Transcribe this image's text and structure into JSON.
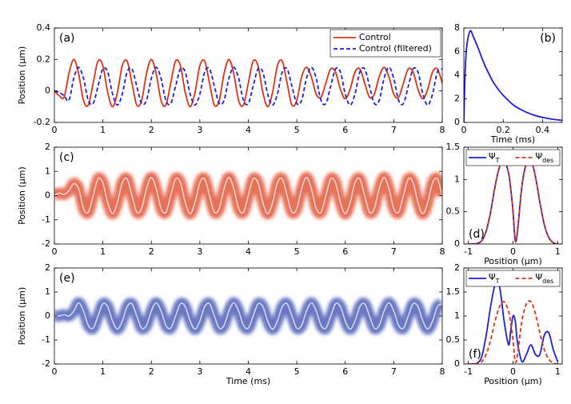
{
  "chart_data": [
    {
      "type": "line",
      "annotation": "(a)",
      "annotation_position": "upper left",
      "ylabel": "Position (μm)",
      "x": [
        0,
        0.1,
        0.2,
        0.3,
        0.4,
        0.5,
        0.6,
        0.7,
        0.8,
        0.9,
        1,
        1.1,
        1.2,
        1.3,
        1.4,
        1.5,
        1.6,
        1.7,
        1.8,
        1.9,
        2,
        2.1,
        2.2,
        2.3,
        2.4,
        2.5,
        2.6,
        2.7,
        2.8,
        2.9,
        3,
        3.1,
        3.2,
        3.3,
        3.4,
        3.5,
        3.6,
        3.7,
        3.8,
        3.9,
        4,
        4.1,
        4.2,
        4.3,
        4.4,
        4.5,
        4.6,
        4.7,
        4.8,
        4.9,
        5,
        5.1,
        5.2,
        5.3,
        5.4,
        5.5,
        5.6,
        5.7,
        5.8,
        5.9,
        6,
        6.1,
        6.2,
        6.3,
        6.4,
        6.5,
        6.6,
        6.7,
        6.8,
        6.9,
        7,
        7.1,
        7.2,
        7.3,
        7.4,
        7.5,
        7.6,
        7.7,
        7.8,
        7.9,
        8
      ],
      "series": [
        {
          "name": "Control",
          "color": "#dd3311",
          "values": [
            0,
            -0.03,
            -0.04,
            0.11,
            0.2,
            0.11,
            -0.06,
            -0.09,
            0.05,
            0.19,
            0.16,
            -0.01,
            -0.1,
            -0.01,
            0.16,
            0.19,
            0.05,
            -0.09,
            -0.06,
            0.11,
            0.2,
            0.11,
            -0.06,
            -0.09,
            0.05,
            0.19,
            0.16,
            -0.01,
            -0.1,
            -0.01,
            0.16,
            0.19,
            0.05,
            -0.09,
            -0.06,
            0.11,
            0.2,
            0.11,
            -0.06,
            -0.09,
            0.05,
            0.19,
            0.16,
            -0.01,
            -0.1,
            -0.01,
            0.16,
            0.19,
            0.05,
            -0.09,
            -0.06,
            0.09,
            0.15,
            0.09,
            -0.02,
            -0.04,
            0.05,
            0.14,
            0.12,
            0.01,
            -0.05,
            0.01,
            0.12,
            0.14,
            0.05,
            -0.04,
            -0.02,
            0.09,
            0.15,
            0.09,
            -0.02,
            -0.04,
            0.05,
            0.14,
            0.12,
            0.01,
            -0.05,
            0.01,
            0.12,
            0.14,
            0.05
          ]
        },
        {
          "name": "Control (filtered)",
          "color": "#1f1fd6",
          "dashed": true,
          "values": [
            0,
            -0.01,
            -0.03,
            -0.06,
            0.08,
            0.15,
            0.08,
            -0.06,
            -0.08,
            0.03,
            0.14,
            0.12,
            -0.02,
            -0.09,
            -0.02,
            0.12,
            0.14,
            0.03,
            -0.08,
            -0.06,
            0.08,
            0.15,
            0.08,
            -0.06,
            -0.08,
            0.03,
            0.14,
            0.12,
            -0.02,
            -0.09,
            -0.02,
            0.12,
            0.14,
            0.03,
            -0.08,
            -0.06,
            0.08,
            0.15,
            0.08,
            -0.06,
            -0.08,
            0.03,
            0.14,
            0.12,
            -0.02,
            -0.09,
            -0.02,
            0.12,
            0.14,
            0.03,
            -0.08,
            -0.06,
            0.08,
            0.15,
            0.08,
            -0.06,
            -0.08,
            0.03,
            0.14,
            0.12,
            -0.02,
            -0.09,
            -0.02,
            0.12,
            0.14,
            0.03,
            -0.08,
            -0.06,
            0.08,
            0.15,
            0.08,
            -0.06,
            -0.08,
            0.03,
            0.14,
            0.12,
            -0.02,
            -0.09,
            -0.02,
            0.12,
            0.14
          ]
        }
      ],
      "xlim": [
        0,
        8
      ],
      "xticks": [
        0,
        1,
        2,
        3,
        4,
        5,
        6,
        7,
        8
      ],
      "ylim": [
        -0.2,
        0.4
      ],
      "yticks": [
        -0.2,
        0,
        0.2,
        0.4
      ],
      "legend": "upper right"
    },
    {
      "type": "line",
      "annotation": "(b)",
      "annotation_position": "upper right",
      "xlabel": "Time (ms)",
      "x": [
        0,
        0.01,
        0.03,
        0.05,
        0.075,
        0.1,
        0.125,
        0.15,
        0.175,
        0.2,
        0.25,
        0.3,
        0.35,
        0.4,
        0.45,
        0.5
      ],
      "series": [
        {
          "color": "#1f1fd6",
          "values": [
            0,
            5.5,
            7.7,
            7.2,
            6.2,
            5.1,
            4.2,
            3.4,
            2.8,
            2.3,
            1.5,
            1.0,
            0.65,
            0.42,
            0.27,
            0.17
          ]
        }
      ],
      "xlim": [
        0,
        0.5
      ],
      "xticks": [
        0,
        0.2,
        0.4
      ],
      "ylim": [
        0,
        8
      ],
      "yticks": [
        0,
        2,
        4,
        6,
        8
      ]
    },
    {
      "type": "density",
      "annotation": "(c)",
      "annotation_position": "upper left",
      "ylabel": "Position (μm)",
      "color": "#dd3311",
      "x": [
        0,
        0.1,
        0.2,
        0.3,
        0.4,
        0.5,
        0.6,
        0.7,
        0.8,
        0.9,
        1,
        1.1,
        1.2,
        1.3,
        1.4,
        1.5,
        1.6,
        1.7,
        1.8,
        1.9,
        2,
        2.1,
        2.2,
        2.3,
        2.4,
        2.5,
        2.6,
        2.7,
        2.8,
        2.9,
        3,
        3.1,
        3.2,
        3.3,
        3.4,
        3.5,
        3.6,
        3.7,
        3.8,
        3.9,
        4,
        4.1,
        4.2,
        4.3,
        4.4,
        4.5,
        4.6,
        4.7,
        4.8,
        4.9,
        5,
        5.1,
        5.2,
        5.3,
        5.4,
        5.5,
        5.6,
        5.7,
        5.8,
        5.9,
        6,
        6.1,
        6.2,
        6.3,
        6.4,
        6.5,
        6.6,
        6.7,
        6.8,
        6.9,
        7,
        7.1,
        7.2,
        7.3,
        7.4,
        7.5,
        7.6,
        7.7,
        7.8,
        7.9,
        8
      ],
      "values": [
        0,
        0.1,
        0.05,
        0.2,
        0.5,
        0.29,
        -0.53,
        -0.69,
        0,
        0.69,
        0.53,
        -0.29,
        -0.75,
        -0.29,
        0.53,
        0.69,
        0,
        -0.69,
        -0.53,
        0.29,
        0.75,
        0.29,
        -0.53,
        -0.69,
        0,
        0.69,
        0.53,
        -0.29,
        -0.75,
        -0.29,
        0.53,
        0.69,
        0,
        -0.69,
        -0.53,
        0.29,
        0.75,
        0.29,
        -0.53,
        -0.69,
        0,
        0.69,
        0.53,
        -0.29,
        -0.75,
        -0.29,
        0.53,
        0.69,
        0,
        -0.69,
        -0.53,
        0.29,
        0.75,
        0.29,
        -0.53,
        -0.69,
        0,
        0.69,
        0.53,
        -0.29,
        -0.75,
        -0.29,
        0.53,
        0.69,
        0,
        -0.69,
        -0.53,
        0.29,
        0.75,
        0.29,
        -0.53,
        -0.69,
        0,
        0.69,
        0.53,
        -0.29,
        -0.75,
        -0.29,
        0.53,
        0.69,
        0
      ],
      "xlim": [
        0,
        8
      ],
      "xticks": [
        0,
        1,
        2,
        3,
        4,
        5,
        6,
        7,
        8
      ],
      "ylim": [
        -2,
        2
      ],
      "yticks": [
        -2,
        -1,
        0,
        1,
        2
      ]
    },
    {
      "type": "line",
      "annotation": "(d)",
      "annotation_position": "lower left",
      "xlabel": "Position (μm)",
      "x": [
        -1,
        -0.9,
        -0.8,
        -0.7,
        -0.6,
        -0.5,
        -0.4,
        -0.3,
        -0.2,
        -0.1,
        -0.05,
        0,
        0.05,
        0.1,
        0.2,
        0.3,
        0.4,
        0.5,
        0.6,
        0.7,
        0.8,
        0.9,
        1
      ],
      "series": [
        {
          "name": "ΨT",
          "color": "#1f1fd6",
          "values": [
            0,
            0,
            0.01,
            0.05,
            0.2,
            0.5,
            0.9,
            1.2,
            1.3,
            1.1,
            0.85,
            0.5,
            0.05,
            0.2,
            0.9,
            1.25,
            1.3,
            1.05,
            0.65,
            0.3,
            0.1,
            0.02,
            0
          ]
        },
        {
          "name": "Ψdes",
          "color": "#dd3311",
          "dashed": true,
          "values": [
            0,
            0,
            0.01,
            0.05,
            0.2,
            0.5,
            0.9,
            1.2,
            1.3,
            1.1,
            0.85,
            0.5,
            0.05,
            0.2,
            0.9,
            1.25,
            1.3,
            1.05,
            0.65,
            0.3,
            0.1,
            0.02,
            0
          ]
        }
      ],
      "xlim": [
        -1.1,
        1.1
      ],
      "xticks": [
        -1,
        0,
        1
      ],
      "ylim": [
        0,
        1.5
      ],
      "yticks": [
        0,
        0.5,
        1,
        1.5
      ],
      "legend": "upper center"
    },
    {
      "type": "density",
      "annotation": "(e)",
      "annotation_position": "upper left",
      "ylabel": "Position (μm)",
      "xlabel": "Time (ms)",
      "color": "#2a3ea8",
      "x": [
        0,
        0.1,
        0.2,
        0.3,
        0.4,
        0.5,
        0.6,
        0.7,
        0.8,
        0.9,
        1,
        1.1,
        1.2,
        1.3,
        1.4,
        1.5,
        1.6,
        1.7,
        1.8,
        1.9,
        2,
        2.1,
        2.2,
        2.3,
        2.4,
        2.5,
        2.6,
        2.7,
        2.8,
        2.9,
        3,
        3.1,
        3.2,
        3.3,
        3.4,
        3.5,
        3.6,
        3.7,
        3.8,
        3.9,
        4,
        4.1,
        4.2,
        4.3,
        4.4,
        4.5,
        4.6,
        4.7,
        4.8,
        4.9,
        5,
        5.1,
        5.2,
        5.3,
        5.4,
        5.5,
        5.6,
        5.7,
        5.8,
        5.9,
        6,
        6.1,
        6.2,
        6.3,
        6.4,
        6.5,
        6.6,
        6.7,
        6.8,
        6.9,
        7,
        7.1,
        7.2,
        7.3,
        7.4,
        7.5,
        7.6,
        7.7,
        7.8,
        7.9,
        8
      ],
      "values": [
        0,
        0,
        0.05,
        0,
        0.2,
        0.55,
        0.21,
        -0.39,
        -0.51,
        0,
        0.51,
        0.39,
        -0.21,
        -0.55,
        -0.21,
        0.39,
        0.51,
        0,
        -0.51,
        -0.39,
        0.21,
        0.55,
        0.21,
        -0.39,
        -0.51,
        0,
        0.51,
        0.39,
        -0.21,
        -0.55,
        -0.21,
        0.39,
        0.51,
        0,
        -0.51,
        -0.39,
        0.21,
        0.55,
        0.21,
        -0.39,
        -0.51,
        0,
        0.51,
        0.39,
        -0.21,
        -0.55,
        -0.21,
        0.39,
        0.51,
        0,
        -0.51,
        -0.39,
        0.21,
        0.55,
        0.21,
        -0.39,
        -0.51,
        0,
        0.51,
        0.39,
        -0.21,
        -0.55,
        -0.21,
        0.39,
        0.51,
        0,
        -0.51,
        -0.39,
        0.21,
        0.55,
        0.21,
        -0.39,
        -0.51,
        0,
        0.51,
        0.39,
        -0.21,
        -0.55,
        -0.21,
        0.39,
        0.51
      ],
      "xlim": [
        0,
        8
      ],
      "xticks": [
        0,
        1,
        2,
        3,
        4,
        5,
        6,
        7,
        8
      ],
      "ylim": [
        -2,
        2
      ],
      "yticks": [
        -2,
        -1,
        0,
        1,
        2
      ]
    },
    {
      "type": "line",
      "annotation": "(f)",
      "annotation_position": "lower left",
      "xlabel": "Position (μm)",
      "x": [
        -1,
        -0.9,
        -0.8,
        -0.7,
        -0.6,
        -0.5,
        -0.4,
        -0.3,
        -0.2,
        -0.1,
        -0.05,
        0,
        0.05,
        0.1,
        0.2,
        0.3,
        0.4,
        0.5,
        0.6,
        0.7,
        0.8,
        0.9,
        1
      ],
      "series": [
        {
          "name": "ΨT",
          "color": "#1f1fd6",
          "values": [
            0,
            0,
            0.02,
            0.15,
            0.6,
            1.2,
            1.65,
            1.6,
            0.9,
            0.4,
            0.7,
            1.0,
            0.9,
            0.45,
            0.05,
            0.2,
            0.4,
            0.2,
            0.2,
            0.6,
            0.65,
            0.3,
            0.05
          ]
        },
        {
          "name": "Ψdes",
          "color": "#dd3311",
          "dashed": true,
          "values": [
            0,
            0,
            0.01,
            0.05,
            0.2,
            0.5,
            0.9,
            1.2,
            1.3,
            1.1,
            0.85,
            0.5,
            0.05,
            0.2,
            0.9,
            1.25,
            1.3,
            1.05,
            0.65,
            0.3,
            0.1,
            0.02,
            0
          ]
        }
      ],
      "xlim": [
        -1.1,
        1.1
      ],
      "xticks": [
        -1,
        0,
        1
      ],
      "ylim": [
        0,
        2
      ],
      "yticks": [
        0,
        0.5,
        1,
        1.5,
        2
      ],
      "legend": "upper center"
    }
  ]
}
